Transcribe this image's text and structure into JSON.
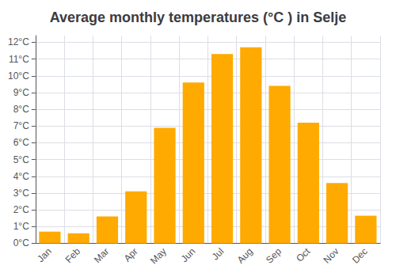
{
  "chart_data": {
    "type": "bar",
    "title": "Average monthly temperatures (°C ) in Selje",
    "categories": [
      "Jan",
      "Feb",
      "Mar",
      "Apr",
      "May",
      "Jun",
      "Jul",
      "Aug",
      "Sep",
      "Oct",
      "Nov",
      "Dec"
    ],
    "values": [
      0.7,
      0.6,
      1.6,
      3.1,
      6.9,
      9.6,
      11.3,
      11.7,
      9.4,
      7.2,
      3.6,
      1.65
    ],
    "color": "#FFAA00",
    "ylim": [
      0,
      12.4
    ],
    "yticks": [
      {
        "value": 0,
        "label": "0°C"
      },
      {
        "value": 1,
        "label": "1°C"
      },
      {
        "value": 2,
        "label": "2°C"
      },
      {
        "value": 3,
        "label": "3°C"
      },
      {
        "value": 4,
        "label": "4°C"
      },
      {
        "value": 5,
        "label": "5°C"
      },
      {
        "value": 6,
        "label": "6°C"
      },
      {
        "value": 7,
        "label": "7°C"
      },
      {
        "value": 8,
        "label": "8°C"
      },
      {
        "value": 9,
        "label": "9°C"
      },
      {
        "value": 10,
        "label": "10°C"
      },
      {
        "value": 11,
        "label": "11°C"
      },
      {
        "value": 12,
        "label": "12°C"
      }
    ],
    "grid": true
  }
}
